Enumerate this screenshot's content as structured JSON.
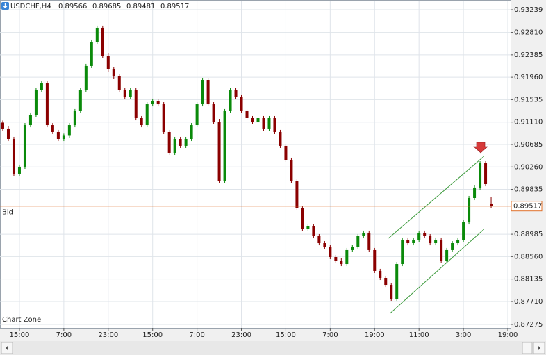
{
  "chart_data": {
    "type": "candlestick",
    "title": "USDCHF,H4",
    "annotation": "Chart Zone",
    "ylim": [
      0.87209,
      0.9341
    ],
    "xlim": [
      -0.5,
      91.5
    ],
    "grid": true,
    "up_color": "#0a8a0a",
    "down_color": "#8b0000",
    "yticks": [
      0.93239,
      {
        "value": 0.9281,
        "label": "0.92810"
      },
      0.92385,
      {
        "value": 0.9196,
        "label": "0.91960"
      },
      0.91535,
      {
        "value": 0.9111,
        "label": "0.91110"
      },
      0.90685,
      {
        "value": 0.9026,
        "label": "0.90260"
      },
      0.89835,
      0.88985,
      {
        "value": 0.8856,
        "label": "0.88560"
      },
      0.88135,
      {
        "value": 0.8771,
        "label": "0.87710"
      },
      0.87275
    ],
    "xticks": [
      {
        "value": 3,
        "label": "15:00"
      },
      {
        "value": 11,
        "label": "7:00"
      },
      {
        "value": 19,
        "label": "23:00"
      },
      {
        "value": 27,
        "label": "15:00"
      },
      {
        "value": 35,
        "label": "7:00"
      },
      {
        "value": 43,
        "label": "23:00"
      },
      {
        "value": 51,
        "label": "15:00"
      },
      {
        "value": 59,
        "label": "7:00"
      },
      {
        "value": 67,
        "label": "19:00"
      },
      {
        "value": 75,
        "label": "11:00"
      },
      {
        "value": 83,
        "label": "3:00"
      },
      {
        "value": 91,
        "label": "19:00"
      }
    ],
    "bid": {
      "label": "Bid",
      "value": 0.89517,
      "color": "#e0702a"
    },
    "trendlines": [
      {
        "color": "#3c9a3c",
        "x": [
          69.5,
          86.7
        ],
        "y": [
          0.88907,
          0.90461
        ]
      },
      {
        "color": "#3c9a3c",
        "x": [
          69.8,
          86.7
        ],
        "y": [
          0.87485,
          0.89079
        ]
      }
    ],
    "open": [
      0.911,
      0.90988,
      0.9079,
      0.90132,
      0.90264,
      0.91053,
      0.91251,
      0.91712,
      0.91843,
      0.91053,
      0.90922,
      0.9079,
      0.9085,
      0.91053,
      0.91317,
      0.91712,
      0.92173,
      0.92633,
      0.92897,
      0.9237,
      0.92107,
      0.91975,
      0.91712,
      0.9158,
      0.91712,
      0.91185,
      0.91053,
      0.91448,
      0.91514,
      0.91448,
      0.90922,
      0.90527,
      0.9079,
      0.90659,
      0.9079,
      0.91053,
      0.91448,
      0.91909,
      0.91448,
      0.91119,
      0.9,
      0.91317,
      0.91712,
      0.9158,
      0.91317,
      0.91185,
      0.91119,
      0.91185,
      0.90988,
      0.91185,
      0.90922,
      0.90659,
      0.90395,
      0.9,
      0.89474,
      0.89079,
      0.8914,
      0.88947,
      0.88815,
      0.88749,
      0.88552,
      0.88486,
      0.8842,
      0.88684,
      0.88749,
      0.88947,
      0.89013,
      0.88684,
      0.88289,
      0.88157,
      0.88025,
      0.87762,
      0.8842,
      0.88881,
      0.88815,
      0.88881,
      0.89013,
      0.88947,
      0.88815,
      0.88881,
      0.88486,
      0.88684,
      0.88815,
      0.88881,
      0.8921,
      0.89671,
      0.89869,
      0.90329,
      0.89566
    ],
    "high": [
      0.9114,
      0.91028,
      0.9083,
      0.90304,
      0.91093,
      0.91291,
      0.91752,
      0.91883,
      0.91883,
      0.91093,
      0.90962,
      0.9089,
      0.91093,
      0.91357,
      0.91752,
      0.92213,
      0.92673,
      0.92937,
      0.92937,
      0.9241,
      0.92147,
      0.92015,
      0.91752,
      0.91752,
      0.91752,
      0.91225,
      0.91488,
      0.91554,
      0.91554,
      0.91488,
      0.90962,
      0.9083,
      0.9083,
      0.9083,
      0.91093,
      0.91488,
      0.91949,
      0.91949,
      0.91488,
      0.91159,
      0.91357,
      0.91752,
      0.91752,
      0.9162,
      0.91357,
      0.91225,
      0.91225,
      0.91225,
      0.91225,
      0.91225,
      0.90962,
      0.90699,
      0.90435,
      0.9004,
      0.89514,
      0.8918,
      0.8918,
      0.88987,
      0.88855,
      0.88789,
      0.88592,
      0.88526,
      0.88724,
      0.88789,
      0.88987,
      0.89053,
      0.89053,
      0.88724,
      0.88329,
      0.88197,
      0.88065,
      0.8846,
      0.88921,
      0.88921,
      0.88921,
      0.89053,
      0.89053,
      0.88987,
      0.88921,
      0.88921,
      0.88724,
      0.88855,
      0.88921,
      0.8925,
      0.89711,
      0.89909,
      0.90369,
      0.90369,
      0.89685
    ],
    "low": [
      0.90948,
      0.9075,
      0.90092,
      0.90092,
      0.90224,
      0.91013,
      0.91211,
      0.91672,
      0.91013,
      0.90882,
      0.9075,
      0.9075,
      0.9081,
      0.91013,
      0.91277,
      0.91672,
      0.92133,
      0.92593,
      0.9233,
      0.92067,
      0.91935,
      0.91672,
      0.9154,
      0.9154,
      0.91145,
      0.91013,
      0.91013,
      0.91408,
      0.91408,
      0.90882,
      0.90487,
      0.90487,
      0.90619,
      0.90619,
      0.9075,
      0.91013,
      0.91408,
      0.91408,
      0.91079,
      0.8996,
      0.8996,
      0.91277,
      0.9154,
      0.91277,
      0.91145,
      0.91079,
      0.91079,
      0.90948,
      0.90948,
      0.90882,
      0.90619,
      0.90355,
      0.8996,
      0.89434,
      0.89039,
      0.89039,
      0.88907,
      0.88775,
      0.88709,
      0.88512,
      0.88446,
      0.8838,
      0.8838,
      0.88644,
      0.88709,
      0.88907,
      0.88644,
      0.88249,
      0.88117,
      0.87985,
      0.87722,
      0.87722,
      0.8838,
      0.88775,
      0.88775,
      0.88841,
      0.88907,
      0.88775,
      0.88775,
      0.88446,
      0.88446,
      0.88644,
      0.88775,
      0.88841,
      0.8917,
      0.89631,
      0.89829,
      0.89894,
      0.89481
    ],
    "close": [
      0.90988,
      0.9079,
      0.90132,
      0.90264,
      0.91053,
      0.91251,
      0.91712,
      0.91843,
      0.91053,
      0.90922,
      0.9079,
      0.9085,
      0.91053,
      0.91317,
      0.91712,
      0.92173,
      0.92633,
      0.92897,
      0.9237,
      0.92107,
      0.91975,
      0.91712,
      0.9158,
      0.91712,
      0.91185,
      0.91053,
      0.91448,
      0.91514,
      0.91448,
      0.90922,
      0.90527,
      0.9079,
      0.90659,
      0.9079,
      0.91053,
      0.91448,
      0.91909,
      0.91448,
      0.91119,
      0.9,
      0.91317,
      0.91712,
      0.9158,
      0.91317,
      0.91185,
      0.91119,
      0.91185,
      0.90988,
      0.91185,
      0.90922,
      0.90659,
      0.90395,
      0.9,
      0.89474,
      0.89079,
      0.8914,
      0.88947,
      0.88815,
      0.88749,
      0.88552,
      0.88486,
      0.8842,
      0.88684,
      0.88749,
      0.88947,
      0.89013,
      0.88684,
      0.88289,
      0.88157,
      0.88025,
      0.87762,
      0.8842,
      0.88881,
      0.88815,
      0.88881,
      0.89013,
      0.88947,
      0.88815,
      0.88881,
      0.88486,
      0.88684,
      0.88815,
      0.88881,
      0.8921,
      0.89671,
      0.89869,
      0.90329,
      0.89934,
      0.89517
    ]
  }
}
